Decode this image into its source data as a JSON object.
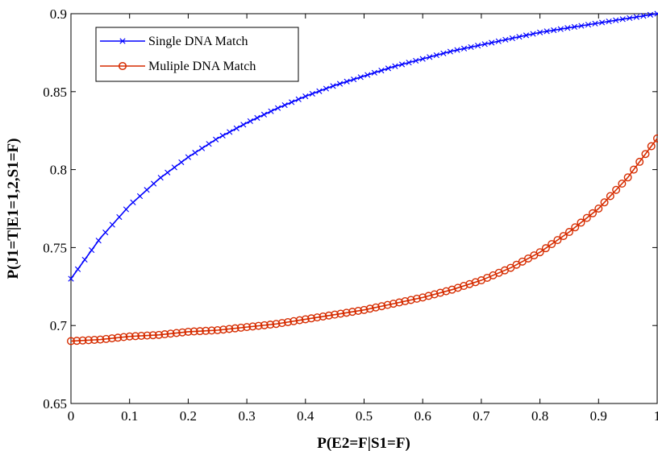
{
  "chart_data": {
    "type": "line",
    "xlabel": "P(E2=F|S1=F)",
    "ylabel": "P(J1=T|E1=1,2,S1=F)",
    "xlim": [
      0,
      1
    ],
    "ylim": [
      0.65,
      0.9
    ],
    "x_ticks": [
      "0",
      "0.1",
      "0.2",
      "0.3",
      "0.4",
      "0.5",
      "0.6",
      "0.7",
      "0.8",
      "0.9",
      "1"
    ],
    "y_ticks": [
      "0.65",
      "0.7",
      "0.75",
      "0.8",
      "0.85",
      "0.9"
    ],
    "grid": false,
    "legend_position": "top-left",
    "x": [
      0,
      0.05,
      0.1,
      0.15,
      0.2,
      0.25,
      0.3,
      0.35,
      0.4,
      0.45,
      0.5,
      0.55,
      0.6,
      0.65,
      0.7,
      0.75,
      0.8,
      0.85,
      0.9,
      0.95,
      1.0
    ],
    "series": [
      {
        "name": "Single DNA Match",
        "color": "#0000ff",
        "marker": "x",
        "values": [
          0.73,
          0.756,
          0.777,
          0.794,
          0.808,
          0.82,
          0.83,
          0.839,
          0.847,
          0.854,
          0.86,
          0.866,
          0.871,
          0.876,
          0.88,
          0.884,
          0.888,
          0.891,
          0.894,
          0.897,
          0.9
        ]
      },
      {
        "name": "Muliple DNA Match",
        "color": "#d62c00",
        "marker": "o",
        "values": [
          0.69,
          0.691,
          0.693,
          0.694,
          0.696,
          0.697,
          0.699,
          0.701,
          0.704,
          0.707,
          0.71,
          0.714,
          0.718,
          0.723,
          0.729,
          0.737,
          0.747,
          0.76,
          0.775,
          0.795,
          0.82
        ]
      }
    ]
  }
}
